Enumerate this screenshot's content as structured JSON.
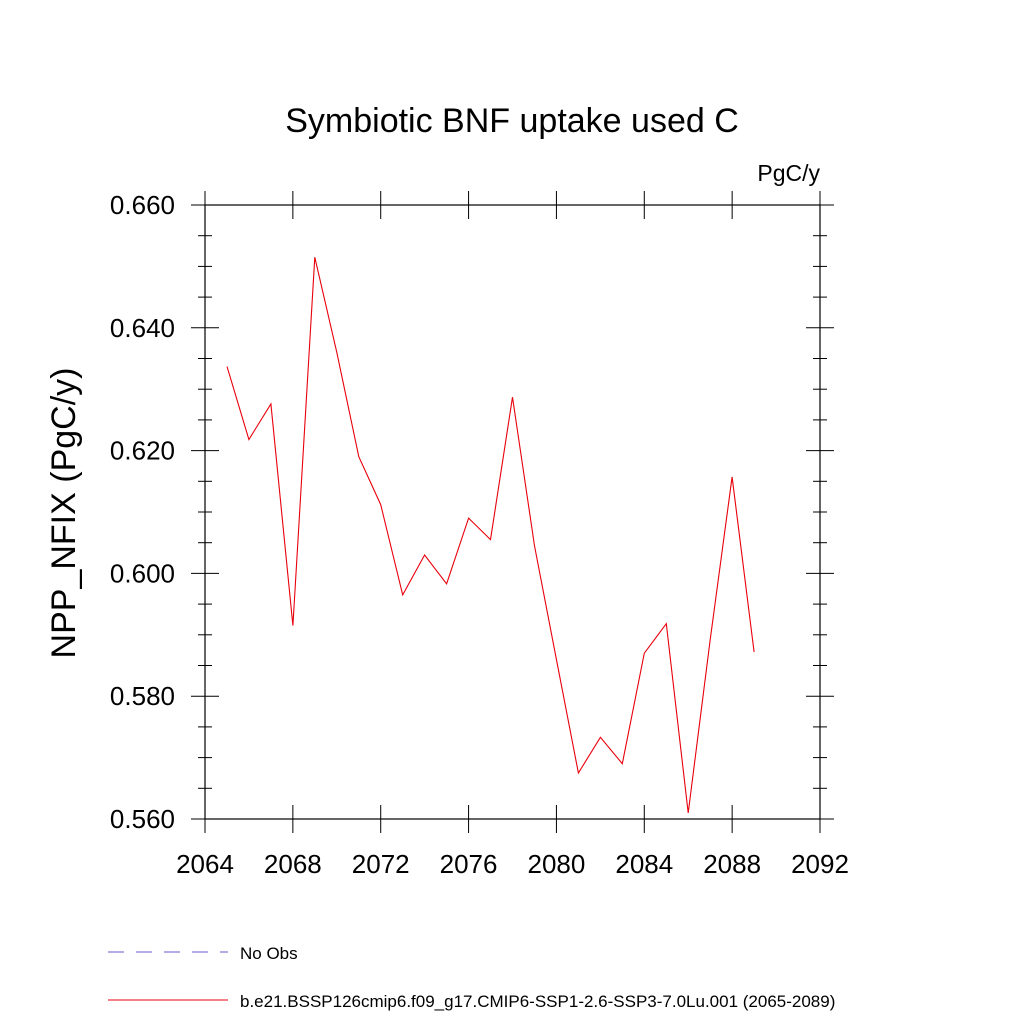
{
  "chart_data": {
    "type": "line",
    "title": "Symbiotic BNF uptake used C",
    "units": "PgC/y",
    "xlabel": "",
    "ylabel": "NPP_NFIX  (PgC/y)",
    "xlim": [
      2064,
      2092
    ],
    "ylim": [
      0.56,
      0.66
    ],
    "x_ticks": [
      2064,
      2068,
      2072,
      2076,
      2080,
      2084,
      2088,
      2092
    ],
    "x_tick_labels": [
      "2064",
      "2068",
      "2072",
      "2076",
      "2080",
      "2084",
      "2088",
      "2092"
    ],
    "y_ticks": [
      0.56,
      0.58,
      0.6,
      0.62,
      0.64,
      0.66
    ],
    "y_tick_labels": [
      "0.560",
      "0.580",
      "0.600",
      "0.620",
      "0.640",
      "0.660"
    ],
    "grid": false,
    "legend_position": "bottom",
    "series": [
      {
        "name": "b.e21.BSSP126cmip6.f09_g17.CMIP6-SSP1-2.6-SSP3-7.0Lu.001 (2065-2089)",
        "color": "#e8000b",
        "style": "solid",
        "x": [
          2065,
          2066,
          2067,
          2068,
          2069,
          2070,
          2071,
          2072,
          2073,
          2074,
          2075,
          2076,
          2077,
          2078,
          2079,
          2080,
          2081,
          2082,
          2083,
          2084,
          2085,
          2086,
          2087,
          2088,
          2089
        ],
        "y": [
          0.6337,
          0.6218,
          0.6276,
          0.5915,
          0.6515,
          0.636,
          0.619,
          0.6112,
          0.5965,
          0.603,
          0.5983,
          0.609,
          0.6055,
          0.6287,
          0.6045,
          0.586,
          0.5675,
          0.5733,
          0.569,
          0.587,
          0.5918,
          0.561,
          0.5892,
          0.6157,
          0.5872
        ]
      }
    ],
    "legend": [
      {
        "label": "No Obs",
        "color": "#6a5acd",
        "style": "dashed"
      },
      {
        "label": "b.e21.BSSP126cmip6.f09_g17.CMIP6-SSP1-2.6-SSP3-7.0Lu.001 (2065-2089)",
        "color": "#e8000b",
        "style": "solid"
      }
    ]
  }
}
